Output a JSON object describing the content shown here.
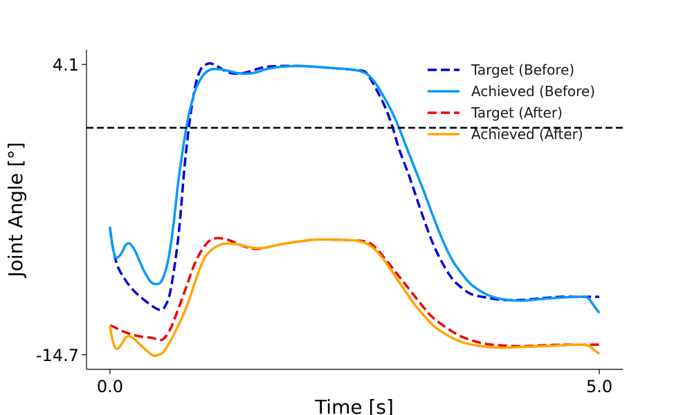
{
  "chart_data": {
    "type": "line",
    "xlabel": "Time [s]",
    "ylabel": "Joint Angle [°]",
    "xlim": [
      -0.24,
      5.24
    ],
    "ylim": [
      -15.65,
      5.05
    ],
    "x_ticks": [
      0.0,
      5.0
    ],
    "x_tick_labels": [
      "0.0",
      "5.0"
    ],
    "y_ticks": [
      4.1,
      -14.7
    ],
    "y_tick_labels": [
      "4.1",
      "-14.7"
    ],
    "reference_line": {
      "y": 0.0,
      "style": "dashed",
      "color": "#000000"
    },
    "grid": false,
    "legend_position": "top-right",
    "series": [
      {
        "name": "Target (Before)",
        "color": "#0000e0",
        "dash": true,
        "x": [
          0.0,
          0.03,
          0.08,
          0.15,
          0.22,
          0.3,
          0.4,
          0.47,
          0.52,
          0.56,
          0.62,
          0.7,
          0.77,
          0.85,
          0.92,
          1.0,
          1.06,
          1.12,
          1.2,
          1.3,
          1.4,
          1.5,
          1.6,
          1.75,
          1.95,
          2.1,
          2.3,
          2.5,
          2.6,
          2.65,
          2.72,
          2.8,
          2.88,
          2.95,
          3.05,
          3.12,
          3.2,
          3.3,
          3.4,
          3.5,
          3.6,
          3.7,
          3.85,
          4.0,
          4.2,
          4.4,
          4.6,
          4.8,
          4.93,
          5.0
        ],
        "y": [
          -6.5,
          -7.8,
          -9.0,
          -9.8,
          -10.4,
          -10.9,
          -11.4,
          -11.7,
          -11.8,
          -11.6,
          -10.5,
          -7.0,
          -2.0,
          2.0,
          3.7,
          4.15,
          4.1,
          3.9,
          3.6,
          3.5,
          3.6,
          3.8,
          3.95,
          4.0,
          4.0,
          3.95,
          3.85,
          3.75,
          3.65,
          3.3,
          2.5,
          1.5,
          0.2,
          -1.3,
          -3.0,
          -4.3,
          -5.8,
          -7.5,
          -8.8,
          -9.8,
          -10.4,
          -10.8,
          -11.0,
          -11.15,
          -11.15,
          -11.05,
          -10.95,
          -10.95,
          -10.95,
          -10.95
        ]
      },
      {
        "name": "Achieved (Before)",
        "color": "#0599f7",
        "dash": false,
        "x": [
          0.0,
          0.02,
          0.05,
          0.08,
          0.12,
          0.16,
          0.2,
          0.25,
          0.3,
          0.35,
          0.42,
          0.5,
          0.55,
          0.6,
          0.65,
          0.7,
          0.78,
          0.86,
          0.94,
          1.02,
          1.1,
          1.2,
          1.3,
          1.4,
          1.5,
          1.6,
          1.75,
          1.95,
          2.1,
          2.3,
          2.5,
          2.62,
          2.7,
          2.78,
          2.86,
          2.94,
          3.02,
          3.1,
          3.2,
          3.3,
          3.4,
          3.5,
          3.6,
          3.7,
          3.85,
          4.0,
          4.2,
          4.4,
          4.6,
          4.8,
          4.88,
          4.93,
          5.0
        ],
        "y": [
          -6.4,
          -7.4,
          -8.3,
          -8.4,
          -8.1,
          -7.6,
          -7.5,
          -7.9,
          -8.6,
          -9.3,
          -10.0,
          -10.1,
          -9.6,
          -8.4,
          -6.2,
          -3.4,
          0.0,
          2.2,
          3.3,
          3.75,
          3.8,
          3.7,
          3.55,
          3.5,
          3.6,
          3.8,
          3.95,
          4.0,
          3.95,
          3.85,
          3.75,
          3.5,
          3.0,
          2.2,
          1.3,
          0.2,
          -1.1,
          -2.4,
          -4.0,
          -5.7,
          -7.3,
          -8.6,
          -9.5,
          -10.2,
          -10.8,
          -11.1,
          -11.2,
          -11.1,
          -11.0,
          -10.95,
          -11.0,
          -11.4,
          -12.0
        ]
      },
      {
        "name": "Target (After)",
        "color": "#f00000",
        "dash": true,
        "x": [
          0.0,
          0.04,
          0.1,
          0.18,
          0.26,
          0.34,
          0.42,
          0.48,
          0.52,
          0.56,
          0.62,
          0.7,
          0.78,
          0.86,
          0.94,
          1.02,
          1.1,
          1.2,
          1.3,
          1.4,
          1.5,
          1.6,
          1.75,
          1.95,
          2.1,
          2.3,
          2.5,
          2.6,
          2.65,
          2.72,
          2.8,
          2.9,
          3.0,
          3.1,
          3.2,
          3.3,
          3.45,
          3.6,
          3.8,
          4.0,
          4.2,
          4.4,
          4.6,
          4.8,
          4.93,
          5.0
        ],
        "y": [
          -12.8,
          -12.9,
          -13.1,
          -13.3,
          -13.45,
          -13.55,
          -13.6,
          -13.7,
          -13.75,
          -13.6,
          -13.0,
          -11.7,
          -10.3,
          -8.9,
          -7.9,
          -7.3,
          -7.15,
          -7.25,
          -7.5,
          -7.75,
          -7.85,
          -7.75,
          -7.55,
          -7.35,
          -7.25,
          -7.25,
          -7.3,
          -7.35,
          -7.45,
          -7.8,
          -8.4,
          -9.2,
          -10.0,
          -10.8,
          -11.6,
          -12.3,
          -13.0,
          -13.55,
          -13.95,
          -14.1,
          -14.15,
          -14.1,
          -14.05,
          -14.05,
          -14.05,
          -14.05
        ]
      },
      {
        "name": "Achieved (After)",
        "color": "#ffa500",
        "dash": false,
        "x": [
          0.0,
          0.02,
          0.05,
          0.08,
          0.12,
          0.16,
          0.2,
          0.25,
          0.3,
          0.36,
          0.44,
          0.5,
          0.55,
          0.6,
          0.66,
          0.72,
          0.8,
          0.88,
          0.96,
          1.04,
          1.12,
          1.2,
          1.3,
          1.4,
          1.5,
          1.6,
          1.75,
          1.95,
          2.1,
          2.3,
          2.5,
          2.62,
          2.7,
          2.78,
          2.86,
          2.94,
          3.02,
          3.1,
          3.2,
          3.3,
          3.45,
          3.6,
          3.8,
          4.0,
          4.2,
          4.4,
          4.6,
          4.8,
          4.88,
          4.93,
          5.0
        ],
        "y": [
          -12.8,
          -13.6,
          -14.2,
          -14.3,
          -14.0,
          -13.6,
          -13.5,
          -13.7,
          -14.0,
          -14.35,
          -14.75,
          -14.7,
          -14.5,
          -14.0,
          -13.3,
          -12.5,
          -11.3,
          -9.8,
          -8.5,
          -7.9,
          -7.6,
          -7.5,
          -7.55,
          -7.7,
          -7.8,
          -7.75,
          -7.55,
          -7.35,
          -7.25,
          -7.25,
          -7.3,
          -7.5,
          -7.85,
          -8.4,
          -9.1,
          -9.85,
          -10.6,
          -11.35,
          -12.1,
          -12.8,
          -13.45,
          -13.9,
          -14.15,
          -14.25,
          -14.2,
          -14.15,
          -14.1,
          -14.05,
          -14.1,
          -14.3,
          -14.65
        ]
      }
    ]
  }
}
